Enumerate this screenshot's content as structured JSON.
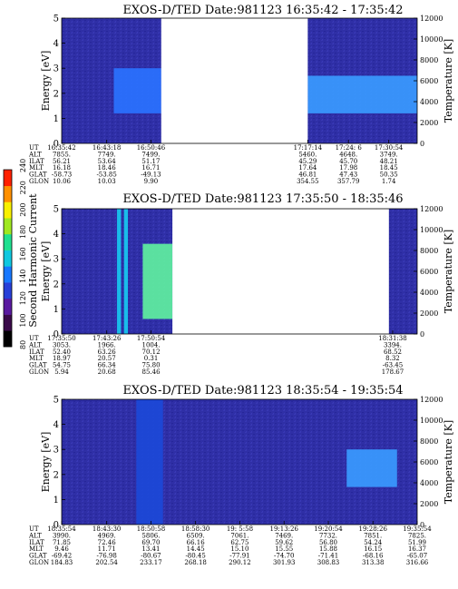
{
  "colorbar": {
    "label": "Second Harmonic Current",
    "ticks": [
      "80",
      "100",
      "120",
      "140",
      "160",
      "180",
      "200",
      "220",
      "240"
    ],
    "colors": [
      "#000000",
      "#3a0a4a",
      "#5a1aa0",
      "#2840d8",
      "#1878ff",
      "#10c8e0",
      "#20e090",
      "#a0e820",
      "#f8f000",
      "#ff9000",
      "#ff2000"
    ]
  },
  "palette": {
    "background": "#2f2fa6",
    "band": "#2a72ff",
    "band_light": "#3a9aff",
    "band_dark": "#1c49d8",
    "cyan": "#18c8f0",
    "green": "#5ff0a0",
    "yellow": "#f6ee20",
    "orange": "#ff7a00",
    "dark": "#1a1a70"
  },
  "chart_data": [
    {
      "type": "heatmap",
      "title": "EXOS-D/TED   Date:981123   16:35:42 - 17:35:42",
      "ylabel": "Energy [eV]",
      "y2label": "Temperature [K]",
      "ylim": [
        0,
        5
      ],
      "y2lim": [
        0,
        12000
      ],
      "yticks": [
        "0",
        "1",
        "2",
        "3",
        "4",
        "5"
      ],
      "y2ticks": [
        "0",
        "2000",
        "4000",
        "6000",
        "8000",
        "10000",
        "12000"
      ],
      "time_range": [
        "16:35:42",
        "17:35:42"
      ],
      "data_gaps": [
        [
          "16:52:30",
          "17:17:14"
        ]
      ],
      "features": [
        {
          "name": "enhanced band",
          "time": [
            "16:44:30",
            "16:52:30"
          ],
          "energy": [
            1.2,
            3.0
          ],
          "level": "band"
        },
        {
          "name": "enhanced band",
          "time": [
            "17:17:14",
            "17:35:42"
          ],
          "energy": [
            1.2,
            2.7
          ],
          "level": "band_light"
        }
      ],
      "ephemeris": {
        "labels": [
          "UT",
          "ALT",
          "ILAT",
          "MLT",
          "GLAT",
          "GLON"
        ],
        "columns": [
          {
            "time": "16:35:42",
            "values": [
              "16:35:42",
              "7855.",
              "56.21",
              "16.18",
              "-58.73",
              "10.06"
            ]
          },
          {
            "time": "16:43:18",
            "values": [
              "16:43:18",
              "7749.",
              "53.64",
              "18.46",
              "-53.85",
              "10.03"
            ]
          },
          {
            "time": "16:50:46",
            "values": [
              "16:50:46",
              "7499.",
              "51.17",
              "16.71",
              "-49.13",
              "9.90"
            ]
          },
          {
            "time": "17:17:14",
            "values": [
              "17:17:14",
              "5460.",
              "45.29",
              "17.64",
              "46.81",
              "354.55"
            ]
          },
          {
            "time": "17:24:06",
            "values": [
              "17:24: 6",
              "4648.",
              "45.70",
              "17.98",
              "47.43",
              "357.79"
            ]
          },
          {
            "time": "17:30:54",
            "values": [
              "17:30:54",
              "3749.",
              "48.21",
              "18.45",
              "50.35",
              "1.74"
            ]
          }
        ]
      }
    },
    {
      "type": "heatmap",
      "title": "EXOS-D/TED   Date:981123   17:35:50 - 18:35:46",
      "ylabel": "Energy [eV]",
      "y2label": "Temperature [K]",
      "ylim": [
        0,
        5
      ],
      "y2lim": [
        0,
        12000
      ],
      "yticks": [
        "0",
        "1",
        "2",
        "3",
        "4",
        "5"
      ],
      "y2ticks": [
        "0",
        "2000",
        "4000",
        "6000",
        "8000",
        "10000",
        "12000"
      ],
      "time_range": [
        "17:35:50",
        "18:35:46"
      ],
      "data_gaps": [
        [
          "17:54:30",
          "18:31:00"
        ]
      ],
      "features": [
        {
          "name": "cyan streak",
          "time": [
            "17:45:10",
            "17:45:50"
          ],
          "energy": [
            0,
            5
          ],
          "level": "cyan"
        },
        {
          "name": "cyan streak",
          "time": [
            "17:46:20",
            "17:47:00"
          ],
          "energy": [
            0,
            5
          ],
          "level": "cyan"
        },
        {
          "name": "green patch",
          "time": [
            "17:49:30",
            "17:54:30"
          ],
          "energy": [
            0.6,
            3.6
          ],
          "level": "green"
        }
      ],
      "ephemeris": {
        "labels": [
          "UT",
          "ALT",
          "ILAT",
          "MLT",
          "GLAT",
          "GLON"
        ],
        "columns": [
          {
            "time": "17:35:50",
            "values": [
              "17:35:50",
              "3053.",
              "52.40",
              "18.97",
              "54.75",
              "5.94"
            ]
          },
          {
            "time": "17:43:26",
            "values": [
              "17:43:26",
              "1966.",
              "63.26",
              "20.57",
              "66.34",
              "20.68"
            ]
          },
          {
            "time": "17:50:54",
            "values": [
              "17:50:54",
              "1004.",
              "70.12",
              "0.31",
              "75.80",
              "85.46"
            ]
          },
          {
            "time": "18:31:38",
            "values": [
              "18:31:38",
              "3394.",
              "68.52",
              "8.32",
              "-63.45",
              "178.67"
            ]
          }
        ]
      }
    },
    {
      "type": "heatmap",
      "title": "EXOS-D/TED   Date:981123   18:35:54 - 19:35:54",
      "ylabel": "Energy [eV]",
      "y2label": "Temperature [K]",
      "ylim": [
        0,
        5
      ],
      "y2lim": [
        0,
        12000
      ],
      "yticks": [
        "0",
        "1",
        "2",
        "3",
        "4",
        "5"
      ],
      "y2ticks": [
        "0",
        "2000",
        "4000",
        "6000",
        "8000",
        "10000",
        "12000"
      ],
      "time_range": [
        "18:35:54",
        "19:35:54"
      ],
      "data_gaps": [],
      "features": [
        {
          "name": "faint streaks",
          "time": [
            "18:48:30",
            "18:53:00"
          ],
          "energy": [
            0,
            5
          ],
          "level": "band_dark"
        },
        {
          "name": "enhanced band",
          "time": [
            "19:24:00",
            "19:32:30"
          ],
          "energy": [
            1.5,
            3.0
          ],
          "level": "band_light"
        }
      ],
      "ephemeris": {
        "labels": [
          "UT",
          "ALT",
          "ILAT",
          "MLT",
          "GLAT",
          "GLON"
        ],
        "columns": [
          {
            "time": "18:35:54",
            "values": [
              "18:35:54",
              "3990.",
              "71.85",
              "9.46",
              "-69.42",
              "184.83"
            ]
          },
          {
            "time": "18:43:30",
            "values": [
              "18:43:30",
              "4969.",
              "72.46",
              "11.71",
              "-76.98",
              "202.54"
            ]
          },
          {
            "time": "18:50:58",
            "values": [
              "18:50:58",
              "5806.",
              "69.70",
              "13.41",
              "-80.67",
              "233.17"
            ]
          },
          {
            "time": "18:58:30",
            "values": [
              "18:58:30",
              "6509.",
              "66.16",
              "14.45",
              "-80.45",
              "268.18"
            ]
          },
          {
            "time": "19:05:58",
            "values": [
              "19: 5:58",
              "7061.",
              "62.75",
              "15.10",
              "-77.91",
              "290.12"
            ]
          },
          {
            "time": "19:13:26",
            "values": [
              "19:13:26",
              "7469.",
              "59.62",
              "15.55",
              "-74.70",
              "301.93"
            ]
          },
          {
            "time": "19:20:54",
            "values": [
              "19:20:54",
              "7732.",
              "56.80",
              "15.88",
              "-71.41",
              "308.83"
            ]
          },
          {
            "time": "19:28:26",
            "values": [
              "19:28:26",
              "7851.",
              "54.24",
              "16.15",
              "-68.16",
              "313.38"
            ]
          },
          {
            "time": "19:35:54",
            "values": [
              "19:35:54",
              "7825.",
              "51.99",
              "16.37",
              "-65.07",
              "316.66"
            ]
          }
        ]
      }
    }
  ]
}
